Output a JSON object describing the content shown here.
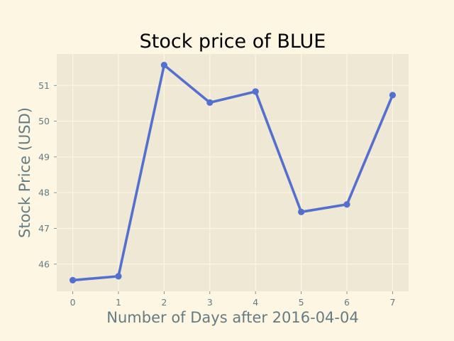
{
  "chart_data": {
    "type": "line",
    "title": "Stock price of BLUE",
    "xlabel": "Number of Days after 2016-04-04",
    "ylabel": "Stock Price (USD)",
    "x": [
      0,
      1,
      2,
      3,
      4,
      5,
      6,
      7
    ],
    "x_tick_labels": [
      "0",
      "1",
      "2",
      "3",
      "4",
      "5",
      "6",
      "7"
    ],
    "y_tick_labels": [
      "46",
      "47",
      "48",
      "49",
      "50",
      "51"
    ],
    "series": [
      {
        "values": [
          45.55,
          45.66,
          51.57,
          50.52,
          50.83,
          47.46,
          47.67,
          50.73
        ],
        "color": "#5470cf"
      }
    ],
    "xlim": [
      -0.35,
      7.35
    ],
    "ylim": [
      45.24,
      51.88
    ],
    "grid": true,
    "background_color": "#fdf6e3",
    "plot_background_color": "#eee8d5",
    "grid_color": "#fdf6e3",
    "text_color": "#657b83"
  }
}
